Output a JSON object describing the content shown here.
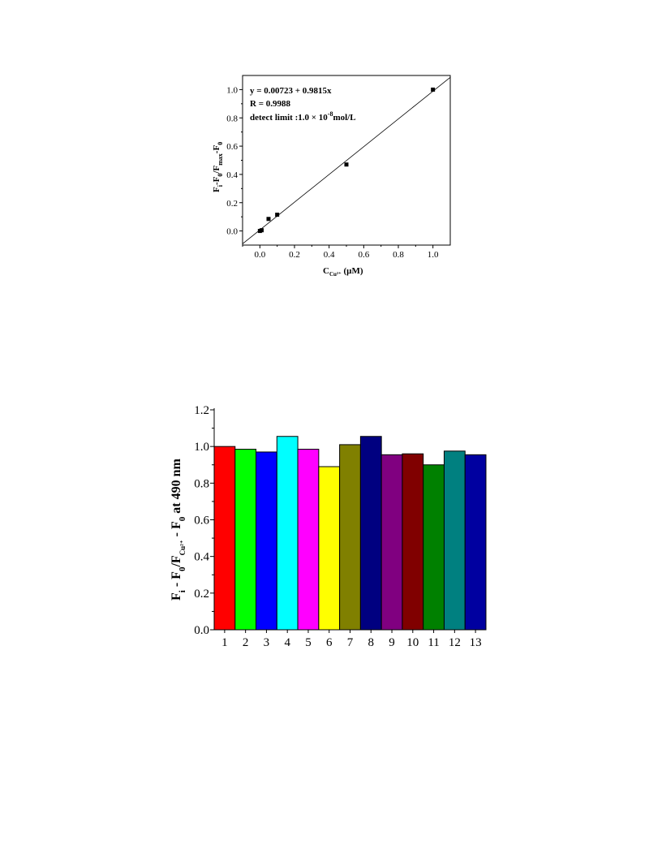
{
  "chart_data": [
    {
      "type": "scatter",
      "annotations": {
        "equation": "y = 0.00723 + 0.9815x",
        "r": "R = 0.9988",
        "detect_limit_prefix": "detect limit :1.0 × 10",
        "detect_limit_exp": "-8",
        "detect_limit_suffix": "mol/L"
      },
      "xlabel": {
        "main": "C",
        "sub": "Cu²⁺",
        "unit": " (µM)"
      },
      "ylabel": {
        "text": "F",
        "sub1": "i",
        "mid1": "-F",
        "sub2": "0",
        "mid2": "/F",
        "sub3": "max",
        "mid3": "-F",
        "sub4": "0"
      },
      "xlim": [
        -0.1,
        1.1
      ],
      "ylim": [
        -0.1,
        1.1
      ],
      "xticks": [
        "0.0",
        "0.2",
        "0.4",
        "0.6",
        "0.8",
        "1.0"
      ],
      "yticks": [
        "0.0",
        "0.2",
        "0.4",
        "0.6",
        "0.8",
        "1.0"
      ],
      "x": [
        0.0,
        0.01,
        0.05,
        0.1,
        0.5,
        1.0
      ],
      "y": [
        0.0,
        0.005,
        0.085,
        0.115,
        0.47,
        1.0
      ],
      "fit": {
        "intercept": 0.00723,
        "slope": 0.9815
      }
    },
    {
      "type": "bar",
      "ylabel": {
        "t1": "F",
        "s1": "i",
        "t2": " - F",
        "s2": "0",
        "t3": "/F",
        "s3": "Cu²⁺",
        "t4": " - F",
        "s4": "0",
        "t5": " at 490 nm"
      },
      "ylim": [
        0.0,
        1.2
      ],
      "yticks": [
        "0.0",
        "0.2",
        "0.4",
        "0.6",
        "0.8",
        "1.0",
        "1.2"
      ],
      "categories": [
        "1",
        "2",
        "3",
        "4",
        "5",
        "6",
        "7",
        "8",
        "9",
        "10",
        "11",
        "12",
        "13"
      ],
      "values": [
        1.0,
        0.985,
        0.97,
        1.055,
        0.985,
        0.89,
        1.01,
        1.055,
        0.955,
        0.96,
        0.9,
        0.975,
        0.955
      ],
      "colors": [
        "#ff0000",
        "#00ff00",
        "#0000ff",
        "#00ffff",
        "#ff00ff",
        "#ffff00",
        "#808000",
        "#000080",
        "#800080",
        "#800000",
        "#008000",
        "#008080",
        "#0000a0"
      ]
    }
  ]
}
